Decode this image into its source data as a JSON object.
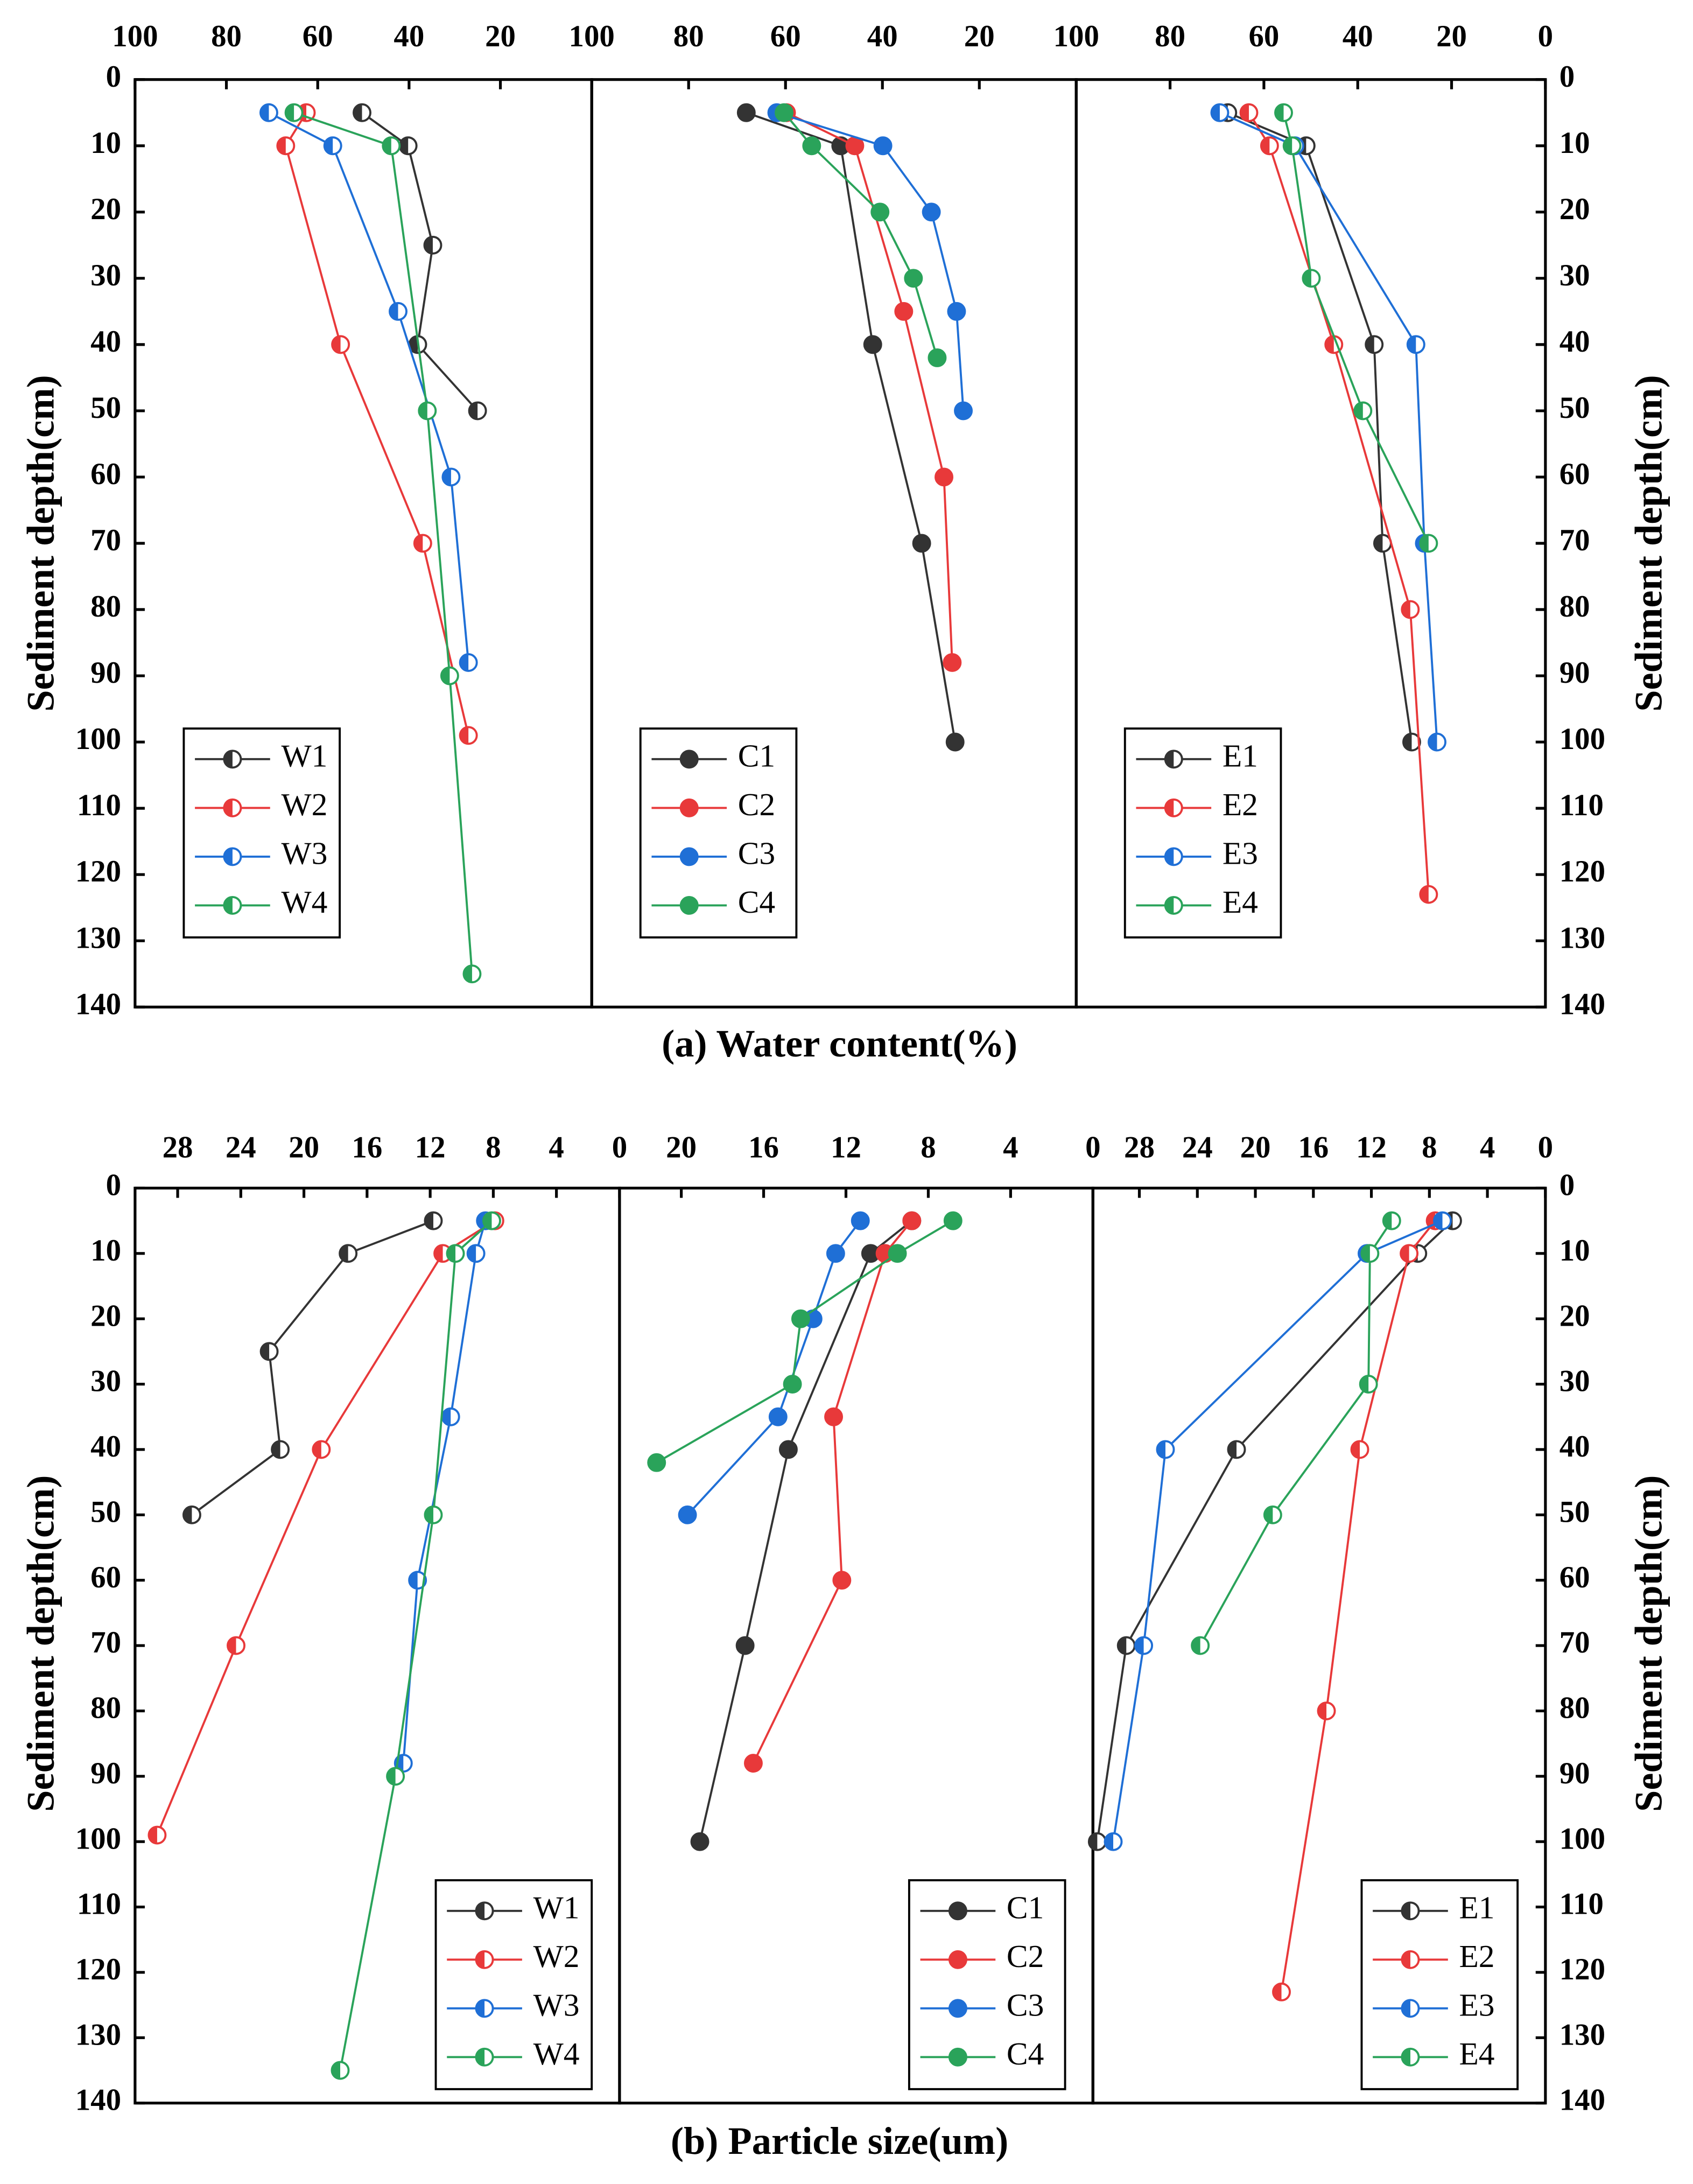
{
  "chart_data": [
    {
      "type": "line",
      "marker": "half",
      "legend": "lower left",
      "ylabel": "Sediment depth(cm)",
      "yaxis": "left",
      "xlim": [
        100,
        0
      ],
      "xticks": [
        100,
        80,
        60,
        40,
        20
      ],
      "ylim": [
        0,
        140
      ],
      "yticks": [
        0,
        10,
        20,
        30,
        40,
        50,
        60,
        70,
        80,
        90,
        100,
        110,
        120,
        130,
        140
      ],
      "series": [
        {
          "name": "W1",
          "color": "#333333",
          "y": [
            5,
            10,
            25,
            40,
            50
          ],
          "x": [
            50.3,
            40.2,
            34.8,
            38.1,
            25
          ]
        },
        {
          "name": "W2",
          "color": "#e8393a",
          "y": [
            5,
            10,
            40,
            70,
            99
          ],
          "x": [
            62.5,
            67,
            55,
            37,
            27
          ]
        },
        {
          "name": "W3",
          "color": "#1f6fd6",
          "y": [
            5,
            10,
            35,
            60,
            88
          ],
          "x": [
            70.7,
            56.7,
            42.4,
            30.8,
            27
          ]
        },
        {
          "name": "W4",
          "color": "#2aa35a",
          "y": [
            5,
            10,
            50,
            90,
            135
          ],
          "x": [
            65.2,
            43.9,
            36,
            31.1,
            26.2
          ]
        }
      ]
    },
    {
      "type": "line",
      "marker": "filled",
      "legend": "lower left",
      "xlabel": "(a) Water content(%)",
      "yaxis": "none",
      "xlim": [
        100,
        0
      ],
      "xticks": [
        100,
        80,
        60,
        40,
        20
      ],
      "ylim": [
        0,
        140
      ],
      "series": [
        {
          "name": "C1",
          "color": "#333333",
          "y": [
            5,
            10,
            40,
            70,
            100
          ],
          "x": [
            68.1,
            48.6,
            42,
            31.9,
            25
          ]
        },
        {
          "name": "C2",
          "color": "#e8393a",
          "y": [
            5,
            10,
            35,
            60,
            88
          ],
          "x": [
            59.8,
            45.7,
            35.6,
            27.3,
            25.6
          ]
        },
        {
          "name": "C3",
          "color": "#1f6fd6",
          "y": [
            5,
            10,
            20,
            35,
            50
          ],
          "x": [
            61.8,
            39.9,
            29.9,
            24.7,
            23.3
          ]
        },
        {
          "name": "C4",
          "color": "#2aa35a",
          "y": [
            5,
            10,
            20,
            30,
            42
          ],
          "x": [
            60.3,
            54.6,
            40.5,
            33.6,
            28.7
          ]
        }
      ]
    },
    {
      "type": "line",
      "marker": "half",
      "legend": "lower left",
      "ylabel": "Sediment depth(cm)",
      "yaxis": "right",
      "xlim": [
        100,
        0
      ],
      "xticks": [
        100,
        80,
        60,
        40,
        20,
        0
      ],
      "ylim": [
        0,
        140
      ],
      "yticks": [
        0,
        10,
        20,
        30,
        40,
        50,
        60,
        70,
        80,
        90,
        100,
        110,
        120,
        130,
        140
      ],
      "series": [
        {
          "name": "E1",
          "color": "#333333",
          "y": [
            5,
            10,
            40,
            70,
            100
          ],
          "x": [
            67.7,
            51,
            36.5,
            34.7,
            28.5
          ]
        },
        {
          "name": "E2",
          "color": "#e8393a",
          "y": [
            5,
            10,
            40,
            80,
            123
          ],
          "x": [
            63.2,
            58.8,
            45.1,
            28.8,
            24.9
          ]
        },
        {
          "name": "E3",
          "color": "#1f6fd6",
          "y": [
            5,
            10,
            40,
            70,
            100
          ],
          "x": [
            69.4,
            53.4,
            27.6,
            25.8,
            23.1
          ]
        },
        {
          "name": "E4",
          "color": "#2aa35a",
          "y": [
            5,
            10,
            30,
            50,
            70
          ],
          "x": [
            55.8,
            54,
            49.9,
            38.9,
            24.9
          ]
        }
      ]
    },
    {
      "type": "line",
      "marker": "half",
      "legend": "lower right",
      "ylabel": "Sediment depth(cm)",
      "yaxis": "left",
      "xlim": [
        30.7,
        0
      ],
      "xticks": [
        28,
        24,
        20,
        16,
        12,
        8,
        4,
        0
      ],
      "ylim": [
        0,
        140
      ],
      "yticks": [
        0,
        10,
        20,
        30,
        40,
        50,
        60,
        70,
        80,
        90,
        100,
        110,
        120,
        130,
        140
      ],
      "series": [
        {
          "name": "W1",
          "color": "#333333",
          "y": [
            5,
            10,
            25,
            40,
            50
          ],
          "x": [
            11.8,
            17.2,
            22.2,
            21.5,
            27.1
          ]
        },
        {
          "name": "W2",
          "color": "#e8393a",
          "y": [
            5,
            10,
            40,
            70,
            99
          ],
          "x": [
            7.9,
            11.2,
            18.9,
            24.3,
            29.3
          ]
        },
        {
          "name": "W3",
          "color": "#1f6fd6",
          "y": [
            5,
            10,
            35,
            60,
            88
          ],
          "x": [
            8.5,
            9.1,
            10.7,
            12.8,
            13.7
          ]
        },
        {
          "name": "W4",
          "color": "#2aa35a",
          "y": [
            5,
            10,
            50,
            90,
            135
          ],
          "x": [
            8.1,
            10.4,
            11.8,
            14.2,
            17.7
          ]
        }
      ]
    },
    {
      "type": "line",
      "marker": "filled",
      "legend": "lower right",
      "xlabel": "(b) Particle size(um)",
      "yaxis": "none",
      "xlim": [
        23,
        0
      ],
      "xticks": [
        20,
        16,
        12,
        8,
        4,
        0
      ],
      "ylim": [
        0,
        140
      ],
      "series": [
        {
          "name": "C1",
          "color": "#333333",
          "y": [
            5,
            10,
            40,
            70,
            100
          ],
          "x": [
            8.8,
            10.8,
            14.8,
            16.9,
            19.1
          ]
        },
        {
          "name": "C2",
          "color": "#e8393a",
          "y": [
            5,
            10,
            35,
            60,
            88
          ],
          "x": [
            8.8,
            10.1,
            12.6,
            12.2,
            16.5
          ]
        },
        {
          "name": "C3",
          "color": "#1f6fd6",
          "y": [
            5,
            10,
            20,
            35,
            50
          ],
          "x": [
            11.3,
            12.5,
            13.6,
            15.3,
            19.7
          ]
        },
        {
          "name": "C4",
          "color": "#2aa35a",
          "y": [
            5,
            10,
            20,
            30,
            42
          ],
          "x": [
            6.8,
            9.5,
            14.2,
            14.6,
            21.2
          ]
        }
      ]
    },
    {
      "type": "line",
      "marker": "half",
      "legend": "lower right",
      "ylabel": "Sediment depth(cm)",
      "yaxis": "right",
      "xlim": [
        31.2,
        0
      ],
      "xticks": [
        28,
        24,
        20,
        16,
        12,
        8,
        4,
        0
      ],
      "ylim": [
        0,
        140
      ],
      "yticks": [
        0,
        10,
        20,
        30,
        40,
        50,
        60,
        70,
        80,
        90,
        100,
        110,
        120,
        130,
        140
      ],
      "series": [
        {
          "name": "E1",
          "color": "#333333",
          "y": [
            5,
            10,
            40,
            70,
            100
          ],
          "x": [
            6.4,
            8.8,
            21.3,
            28.9,
            30.9
          ]
        },
        {
          "name": "E2",
          "color": "#e8393a",
          "y": [
            5,
            10,
            40,
            80,
            123
          ],
          "x": [
            7.6,
            9.4,
            12.8,
            15.1,
            18.2
          ]
        },
        {
          "name": "E3",
          "color": "#1f6fd6",
          "y": [
            5,
            10,
            40,
            70,
            100
          ],
          "x": [
            7.1,
            12.3,
            26.2,
            27.7,
            29.8
          ]
        },
        {
          "name": "E4",
          "color": "#2aa35a",
          "y": [
            5,
            10,
            30,
            50,
            70
          ],
          "x": [
            10.6,
            12.1,
            12.2,
            18.8,
            23.8
          ]
        }
      ]
    }
  ]
}
